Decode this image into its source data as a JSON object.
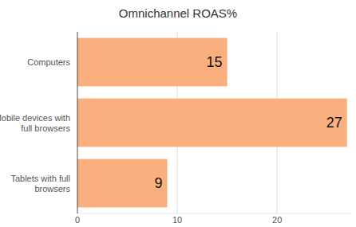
{
  "chart_data": {
    "type": "bar",
    "orientation": "horizontal",
    "title": "Omnichannel ROAS%",
    "categories": [
      "Computers",
      "Mobile devices with full browsers",
      "Tablets with full browsers"
    ],
    "values": [
      15,
      27,
      9
    ],
    "color": "#f9b07e",
    "xlim": [
      0,
      27.5
    ],
    "xticks": [
      0,
      10,
      20
    ],
    "grid": true,
    "data_labels": true
  }
}
